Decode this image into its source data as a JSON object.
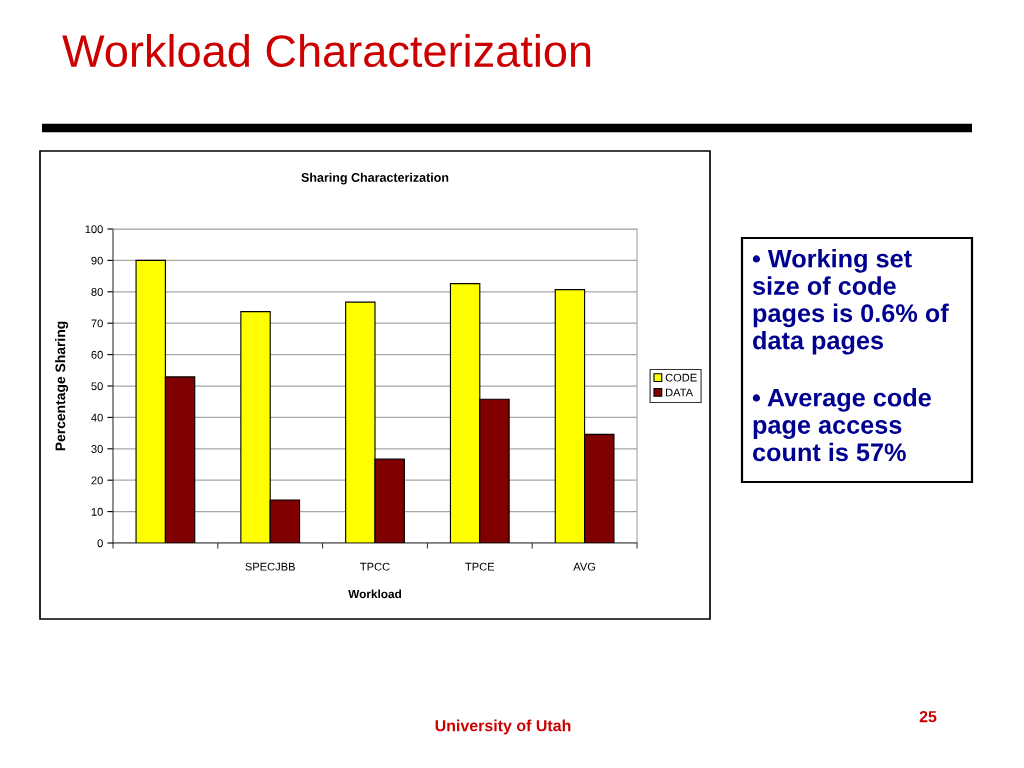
{
  "chart_data": {
    "type": "bar",
    "title": "Sharing Characterization",
    "xlabel": "Workload",
    "ylabel": "Percentage Sharing",
    "categories": [
      null,
      "SPECJBB",
      "TPCC",
      "TPCE",
      "AVG"
    ],
    "series": [
      {
        "name": "CODE",
        "color": "#ffff00",
        "values": [
          90,
          73.7,
          76.7,
          82.6,
          80.7
        ]
      },
      {
        "name": "DATA",
        "color": "#800000",
        "values": [
          52.9,
          13.7,
          26.7,
          45.8,
          34.6
        ]
      }
    ],
    "ylim": [
      0,
      100
    ],
    "yticks": [
      0,
      10,
      20,
      30,
      40,
      50,
      60,
      70,
      80,
      90,
      100
    ],
    "grid": "y",
    "legend": "right",
    "annotations": [
      "Workload Characterization",
      "• Working set size of code pages is 0.6% of data pages",
      "• Average code page access count is 57%",
      "University of Utah",
      "25"
    ]
  }
}
